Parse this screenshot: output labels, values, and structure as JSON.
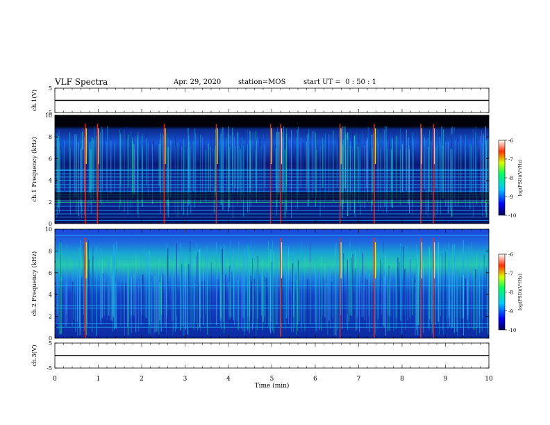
{
  "header": {
    "title": "VLF Spectra",
    "date": "Apr. 29, 2020",
    "station": "station=MOS",
    "start": "start UT =  0 : 50 : 1"
  },
  "chart_data": [
    {
      "type": "line",
      "panel": "ch1-voltage",
      "ylabel": "ch.1(V)",
      "ylim": [
        -5,
        5
      ],
      "yticks": [
        "5",
        "-5"
      ],
      "series": [
        {
          "x": [
            0,
            10
          ],
          "y": [
            0,
            0
          ]
        }
      ]
    },
    {
      "type": "heatmap",
      "panel": "ch1-spectrogram",
      "ylabel": "ch.1 Frequency (kHz)",
      "xlim": [
        0,
        10
      ],
      "ylim": [
        0,
        10
      ],
      "yticks": [
        "0",
        "2",
        "4",
        "6",
        "8",
        "10"
      ],
      "colorbar": {
        "label": "log(PSD)(V²/Hz)",
        "range": [
          -10,
          -6
        ],
        "ticks": [
          "-6",
          "-7",
          "-8",
          "-9",
          "-10"
        ]
      },
      "bright_events_min": [
        0.7,
        0.98,
        2.52,
        3.72,
        4.97,
        5.2,
        6.57,
        7.36,
        8.43,
        8.72
      ]
    },
    {
      "type": "heatmap",
      "panel": "ch2-spectrogram",
      "ylabel": "ch.2 Frequency (kHz)",
      "xlim": [
        0,
        10
      ],
      "ylim": [
        0,
        10
      ],
      "yticks": [
        "0",
        "2",
        "4",
        "6",
        "8",
        "10"
      ],
      "colorbar": {
        "label": "log(PSD)(V²/Hz)",
        "range": [
          -10,
          -6
        ],
        "ticks": [
          "-6",
          "-7",
          "-8",
          "-9",
          "-10"
        ]
      },
      "bright_events_min": [
        0.7,
        5.2,
        6.57,
        7.36,
        8.43,
        8.72
      ]
    },
    {
      "type": "line",
      "panel": "ch3-voltage",
      "ylabel": "ch.3(V)",
      "ylim": [
        -5,
        5
      ],
      "yticks": [
        "5",
        "-5"
      ],
      "xlabel": "Time (min)",
      "xlim": [
        0,
        10
      ],
      "xticks": [
        "0",
        "1",
        "2",
        "3",
        "4",
        "5",
        "6",
        "7",
        "8",
        "9",
        "10"
      ],
      "series": [
        {
          "x": [
            0,
            10
          ],
          "y": [
            0,
            0
          ]
        }
      ]
    }
  ]
}
